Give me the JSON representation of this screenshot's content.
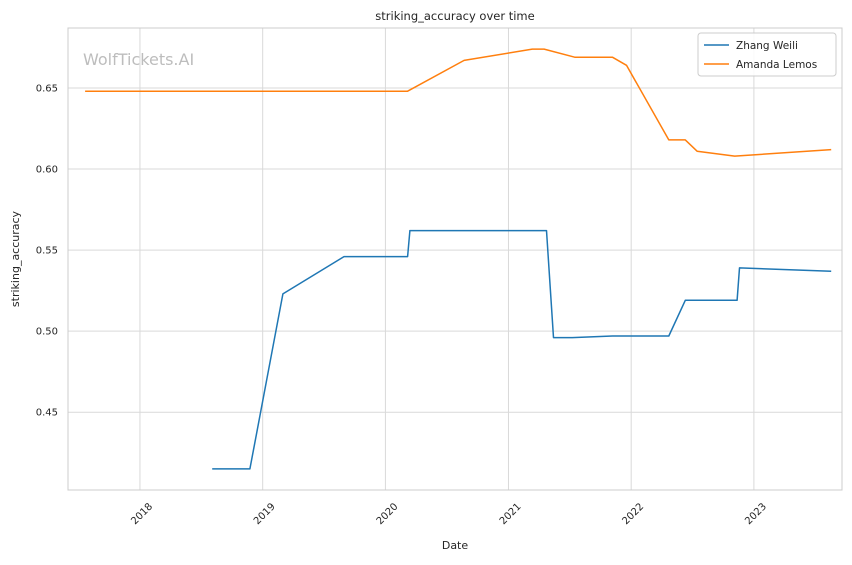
{
  "chart_data": {
    "type": "line",
    "title": "striking_accuracy over time",
    "xlabel": "Date",
    "ylabel": "striking_accuracy",
    "watermark": "WolfTickets.AI",
    "x_ticks": [
      "2018",
      "2019",
      "2020",
      "2021",
      "2022",
      "2023"
    ],
    "y_ticks": [
      "0.45",
      "0.50",
      "0.55",
      "0.60",
      "0.65"
    ],
    "xlim": [
      "2017-06-01",
      "2023-09-20"
    ],
    "ylim": [
      0.402,
      0.687
    ],
    "grid": true,
    "legend_position": "top-right",
    "series": [
      {
        "name": "Zhang Weili",
        "color": "#1f77b4",
        "points": [
          [
            "2018-08-04",
            0.415
          ],
          [
            "2018-11-24",
            0.415
          ],
          [
            "2019-03-02",
            0.523
          ],
          [
            "2019-08-31",
            0.546
          ],
          [
            "2020-03-07",
            0.546
          ],
          [
            "2020-03-14",
            0.562
          ],
          [
            "2021-04-24",
            0.562
          ],
          [
            "2021-05-15",
            0.496
          ],
          [
            "2021-07-10",
            0.496
          ],
          [
            "2021-11-06",
            0.497
          ],
          [
            "2022-04-23",
            0.497
          ],
          [
            "2022-06-11",
            0.519
          ],
          [
            "2022-11-12",
            0.519
          ],
          [
            "2022-11-19",
            0.539
          ],
          [
            "2023-08-19",
            0.537
          ]
        ]
      },
      {
        "name": "Amanda Lemos",
        "color": "#ff7f0e",
        "points": [
          [
            "2017-07-22",
            0.648
          ],
          [
            "2020-03-07",
            0.648
          ],
          [
            "2020-08-22",
            0.667
          ],
          [
            "2021-03-13",
            0.674
          ],
          [
            "2021-04-17",
            0.674
          ],
          [
            "2021-07-17",
            0.669
          ],
          [
            "2021-11-06",
            0.669
          ],
          [
            "2021-12-18",
            0.664
          ],
          [
            "2022-04-23",
            0.618
          ],
          [
            "2022-06-11",
            0.618
          ],
          [
            "2022-07-16",
            0.611
          ],
          [
            "2022-11-05",
            0.608
          ],
          [
            "2023-08-19",
            0.612
          ]
        ]
      }
    ]
  }
}
